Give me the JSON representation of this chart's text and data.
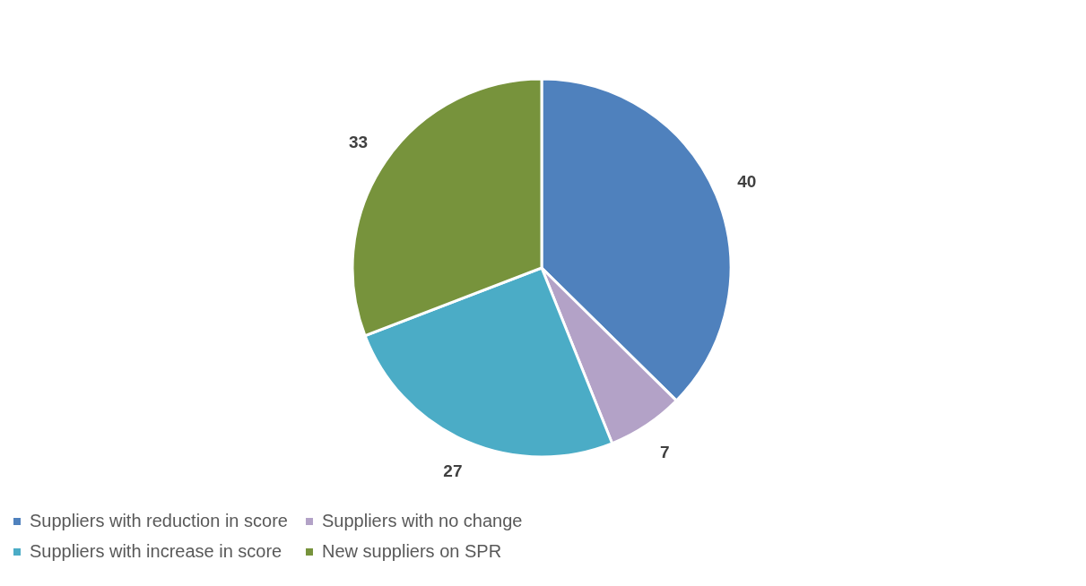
{
  "chart_data": {
    "type": "pie",
    "categories": [
      "Suppliers with reduction in score",
      "Suppliers with no change",
      "Suppliers with increase in score",
      "New suppliers on SPR"
    ],
    "values": [
      40,
      7,
      27,
      33
    ],
    "colors": [
      "#4f81bd",
      "#b3a2c7",
      "#4bacc6",
      "#77933c"
    ],
    "data_labels": true,
    "legend": "bottom"
  }
}
